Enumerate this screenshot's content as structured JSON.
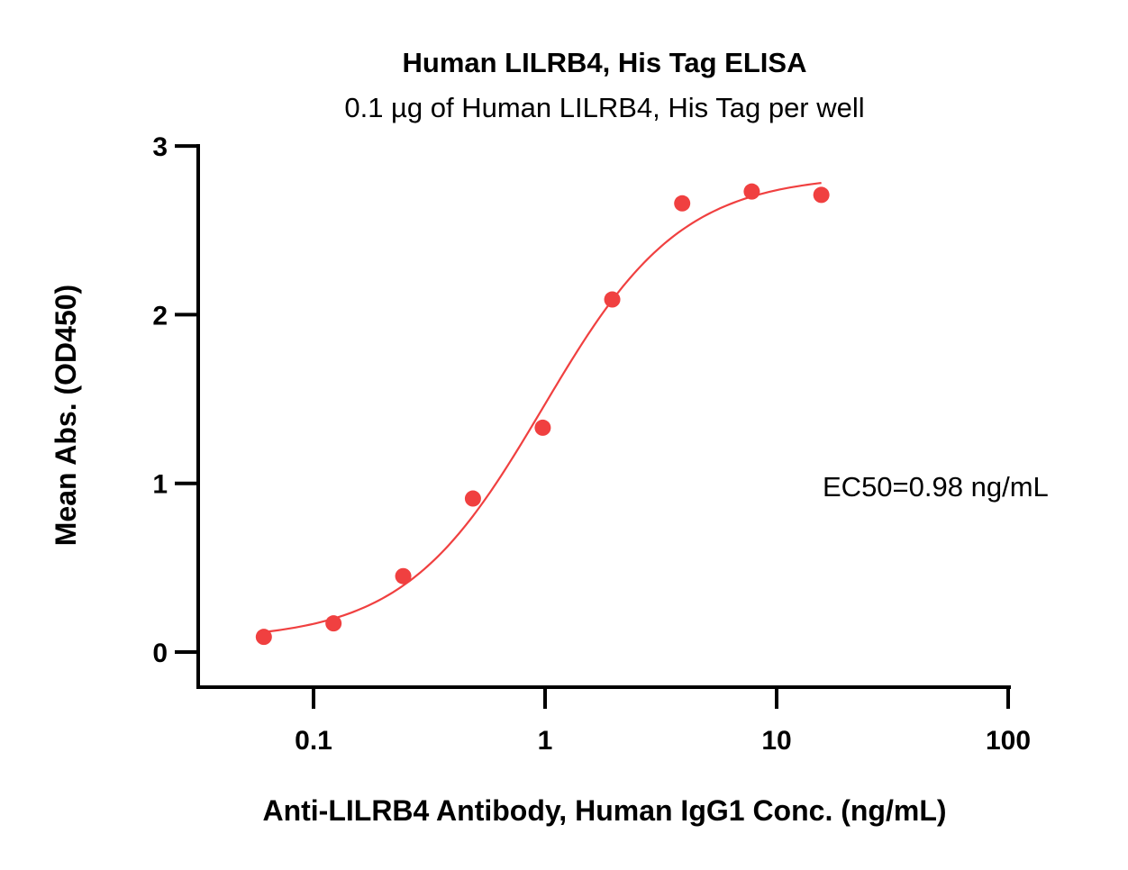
{
  "chart_data": {
    "type": "scatter",
    "title": "Human LILRB4, His Tag ELISA",
    "subtitle": "0.1 µg of Human LILRB4, His Tag per well",
    "xlabel": "Anti-LILRB4 Antibody, Human IgG1 Conc. (ng/mL)",
    "ylabel": "Mean Abs. (OD450)",
    "xscale": "log",
    "xlim": [
      0.025,
      100
    ],
    "ylim": [
      -0.2,
      3
    ],
    "x_ticks": [
      0.1,
      1,
      10,
      100
    ],
    "x_tick_labels": [
      "0.1",
      "1",
      "10",
      "100"
    ],
    "y_ticks": [
      0,
      1,
      2,
      3
    ],
    "y_tick_labels": [
      "0",
      "1",
      "2",
      "3"
    ],
    "grid": false,
    "series": [
      {
        "x": [
          0.061,
          0.122,
          0.244,
          0.488,
          0.977,
          1.95,
          3.91,
          7.81,
          15.6
        ],
        "y": [
          0.09,
          0.17,
          0.45,
          0.91,
          1.33,
          2.09,
          2.66,
          2.73,
          2.71
        ],
        "color": "#f04040",
        "fit": {
          "type": "4PL",
          "bottom": 0.07,
          "top": 2.83,
          "ec50": 0.98,
          "hill": 1.45,
          "x_range": [
            0.061,
            15.6
          ]
        }
      }
    ],
    "annotations": [
      "EC50=0.98 ng/mL"
    ]
  }
}
